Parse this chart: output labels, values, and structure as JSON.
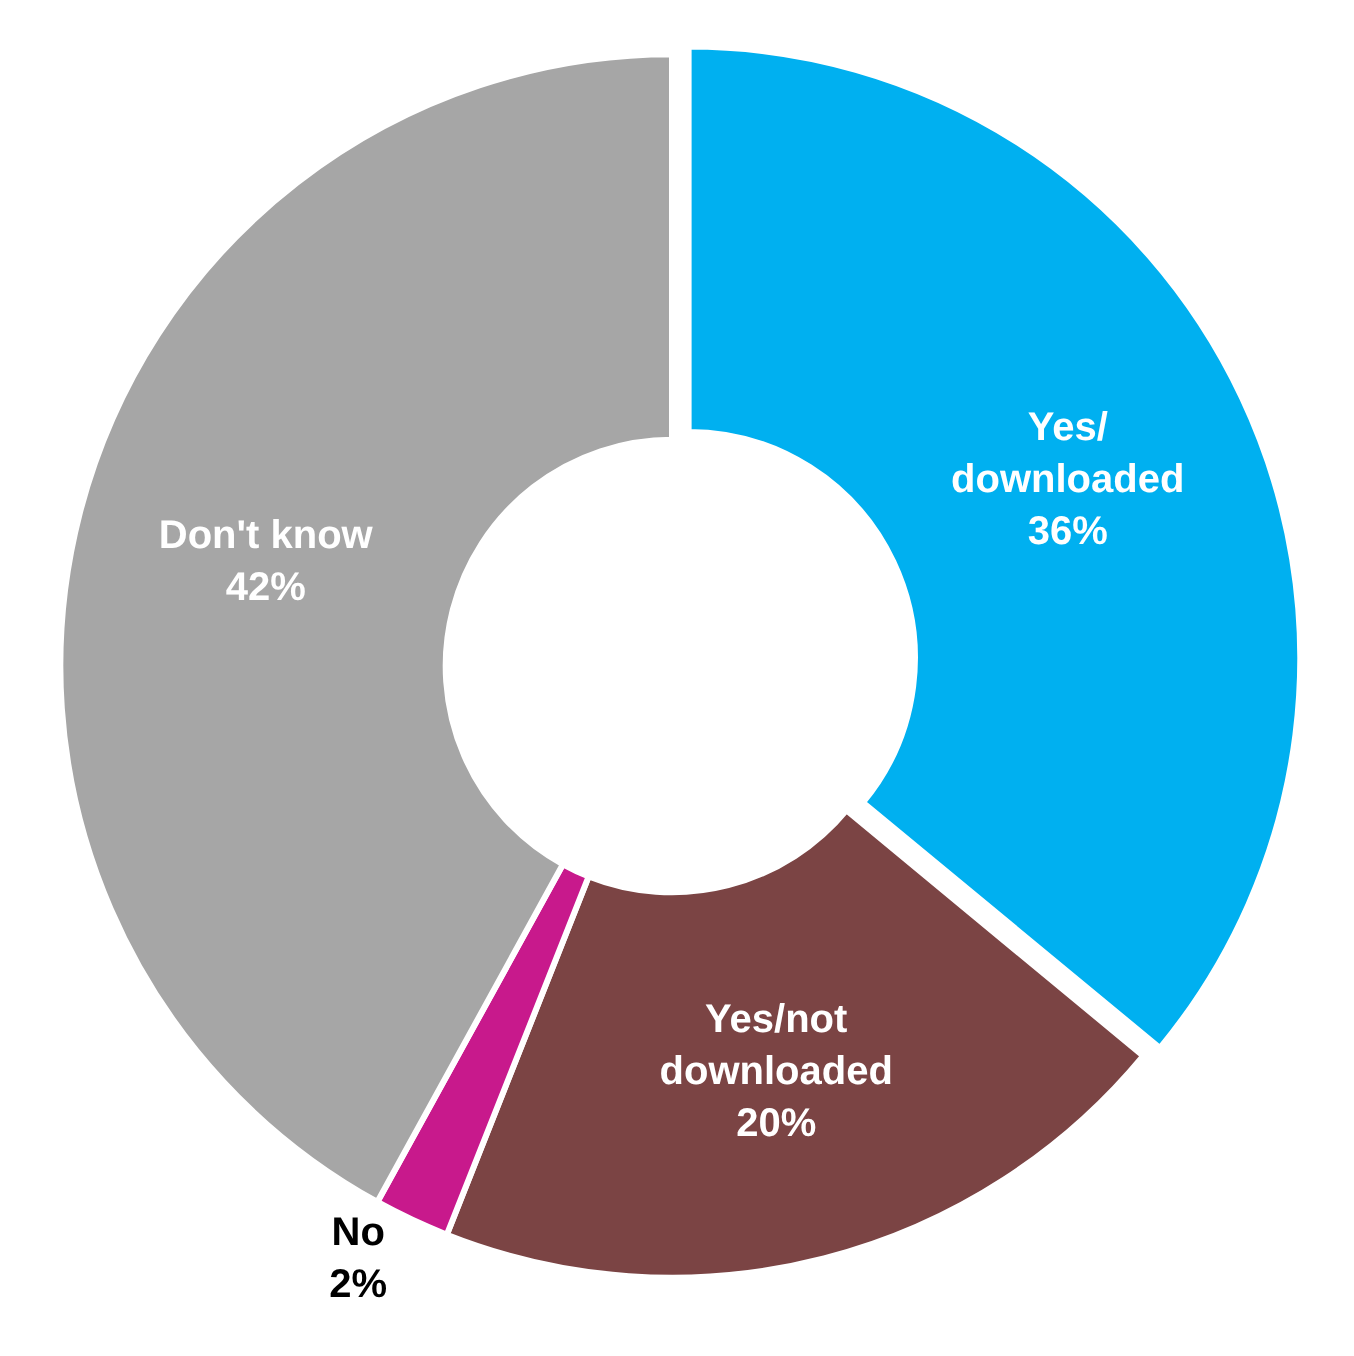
{
  "chart_data": {
    "type": "donut",
    "categories": [
      "Yes/ downloaded",
      "Yes/not downloaded",
      "No",
      "Don't know"
    ],
    "values": [
      36,
      20,
      2,
      42
    ],
    "colors": [
      "#00b0f0",
      "#7b4444",
      "#c8198c",
      "#a6a6a6"
    ],
    "value_labels": [
      "36%",
      "20%",
      "2%",
      "42%"
    ],
    "legend": false
  }
}
